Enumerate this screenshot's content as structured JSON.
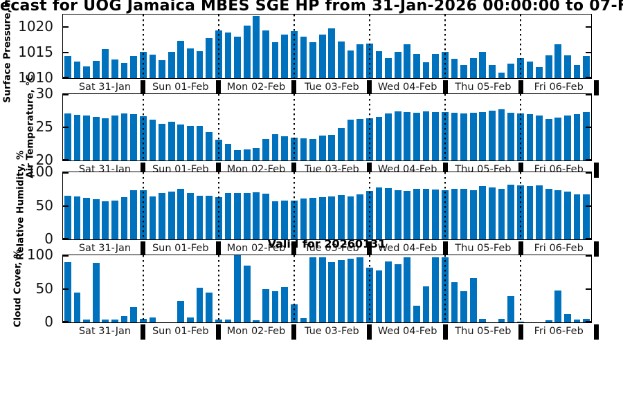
{
  "title": "ecast for UOG Jamaica MBES SGE HP from 31-Jan-2026 00:00:00 to 07-Feb-20",
  "annotation": "Valid for 20260131",
  "colors": {
    "bar": "#0072bd",
    "axis": "#000000"
  },
  "days": [
    "Sat 31-Jan",
    "Sun 01-Feb",
    "Mon 02-Feb",
    "Tue 03-Feb",
    "Wed 04-Feb",
    "Thu 05-Feb",
    "Fri 06-Feb"
  ],
  "bars_per_day": 8,
  "chart_data": [
    {
      "type": "bar",
      "ylabel": "Surface Pressure, mb",
      "yticks": [
        1010,
        1015,
        1020
      ],
      "ylim": [
        1010,
        1022.5
      ],
      "values": [
        1014.4,
        1013.3,
        1012.3,
        1013.4,
        1015.7,
        1013.7,
        1013.0,
        1014.4,
        1015.1,
        1014.6,
        1013.5,
        1015.1,
        1017.4,
        1015.9,
        1015.3,
        1017.9,
        1019.4,
        1019.0,
        1018.2,
        1020.3,
        1022.2,
        1019.4,
        1017.1,
        1018.6,
        1019.2,
        1018.2,
        1017.1,
        1018.5,
        1019.8,
        1017.2,
        1015.4,
        1016.7,
        1016.8,
        1015.3,
        1014.0,
        1015.2,
        1016.7,
        1014.8,
        1013.1,
        1014.7,
        1015.2,
        1013.8,
        1012.6,
        1014.0,
        1015.1,
        1012.6,
        1011.1,
        1012.9,
        1013.9,
        1013.2,
        1012.2,
        1014.5,
        1016.6,
        1014.5,
        1012.6,
        1014.3
      ]
    },
    {
      "type": "bar",
      "ylabel": "Air Temperature, °C",
      "yticks": [
        20,
        25,
        30
      ],
      "ylim": [
        20,
        30
      ],
      "values": [
        27.1,
        26.9,
        26.8,
        26.6,
        26.4,
        26.8,
        27.1,
        27.0,
        26.7,
        26.1,
        25.5,
        25.8,
        25.4,
        25.2,
        25.2,
        24.3,
        23.1,
        22.5,
        21.6,
        21.7,
        21.9,
        23.2,
        24.0,
        23.6,
        23.4,
        23.3,
        23.2,
        23.7,
        23.9,
        24.9,
        26.1,
        26.2,
        26.4,
        26.6,
        27.1,
        27.4,
        27.3,
        27.2,
        27.4,
        27.3,
        27.3,
        27.2,
        27.1,
        27.2,
        27.3,
        27.5,
        27.7,
        27.2,
        27.1,
        27.0,
        26.8,
        26.3,
        26.5,
        26.8,
        27.0,
        27.3
      ]
    },
    {
      "type": "bar",
      "ylabel": "Relative Humidity, %",
      "yticks": [
        0,
        50,
        100
      ],
      "ylim": [
        0,
        100
      ],
      "values": [
        65,
        64,
        62,
        60,
        57,
        58,
        63,
        73,
        73,
        64,
        69,
        71,
        75,
        69,
        65,
        65,
        63,
        69,
        69,
        69,
        70,
        68,
        57,
        58,
        58,
        61,
        62,
        63,
        64,
        66,
        64,
        67,
        72,
        77,
        76,
        73,
        72,
        75,
        75,
        74,
        73,
        75,
        75,
        73,
        79,
        77,
        75,
        81,
        80,
        79,
        80,
        75,
        73,
        71,
        67,
        67
      ]
    },
    {
      "type": "bar",
      "ylabel": "Cloud Cover, %",
      "yticks": [
        0,
        50,
        100
      ],
      "ylim": [
        0,
        100
      ],
      "values": [
        90,
        44,
        4,
        89,
        4,
        4,
        9,
        23,
        5,
        7,
        0,
        0,
        32,
        7,
        52,
        44,
        4,
        4,
        100,
        85,
        3,
        50,
        46,
        53,
        27,
        6,
        97,
        97,
        90,
        93,
        95,
        97,
        81,
        77,
        91,
        87,
        97,
        25,
        54,
        97,
        97,
        60,
        46,
        66,
        5,
        0,
        5,
        39,
        1,
        0,
        0,
        3,
        47,
        12,
        4,
        5
      ]
    }
  ]
}
